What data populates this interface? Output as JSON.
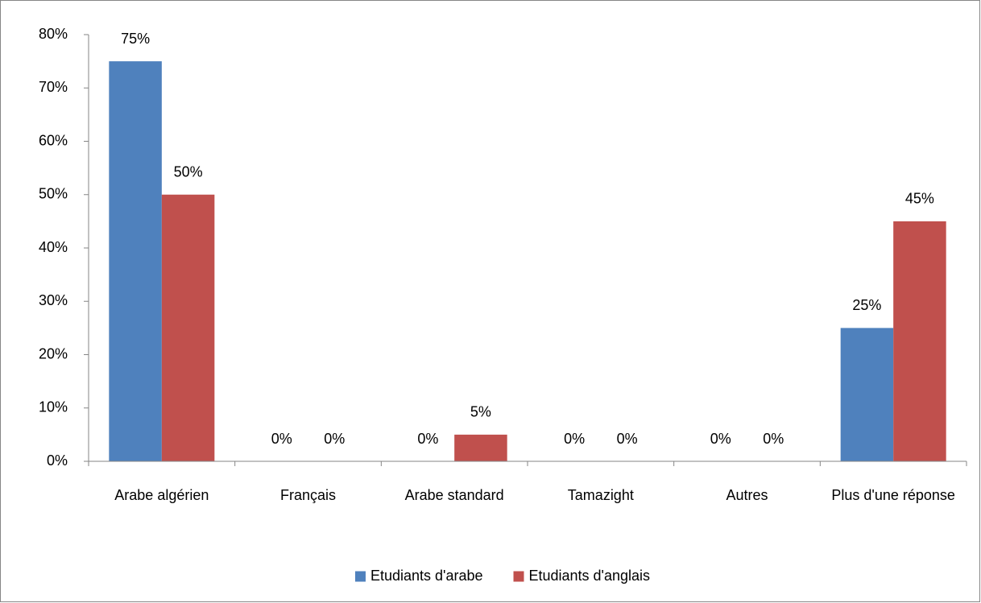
{
  "chart_data": {
    "type": "bar",
    "categories": [
      "Arabe algérien",
      "Français",
      "Arabe standard",
      "Tamazight",
      "Autres",
      "Plus d'une réponse"
    ],
    "series": [
      {
        "name": "Etudiants d'arabe",
        "color": "#4f81bd",
        "values": [
          75,
          0,
          0,
          0,
          0,
          25
        ],
        "value_labels": [
          "75%",
          "0%",
          "0%",
          "0%",
          "0%",
          "25%"
        ]
      },
      {
        "name": "Etudiants d'anglais",
        "color": "#c0504d",
        "values": [
          50,
          0,
          5,
          0,
          0,
          45
        ],
        "value_labels": [
          "50%",
          "0%",
          "5%",
          "0%",
          "0%",
          "45%"
        ]
      }
    ],
    "ylim": [
      0,
      80
    ],
    "yticks": [
      {
        "value": 0,
        "label": "0%"
      },
      {
        "value": 10,
        "label": "10%"
      },
      {
        "value": 20,
        "label": "20%"
      },
      {
        "value": 30,
        "label": "30%"
      },
      {
        "value": 40,
        "label": "40%"
      },
      {
        "value": 50,
        "label": "50%"
      },
      {
        "value": 60,
        "label": "60%"
      },
      {
        "value": 70,
        "label": "70%"
      },
      {
        "value": 80,
        "label": "80%"
      }
    ],
    "grid": false,
    "legend": "bottom"
  }
}
